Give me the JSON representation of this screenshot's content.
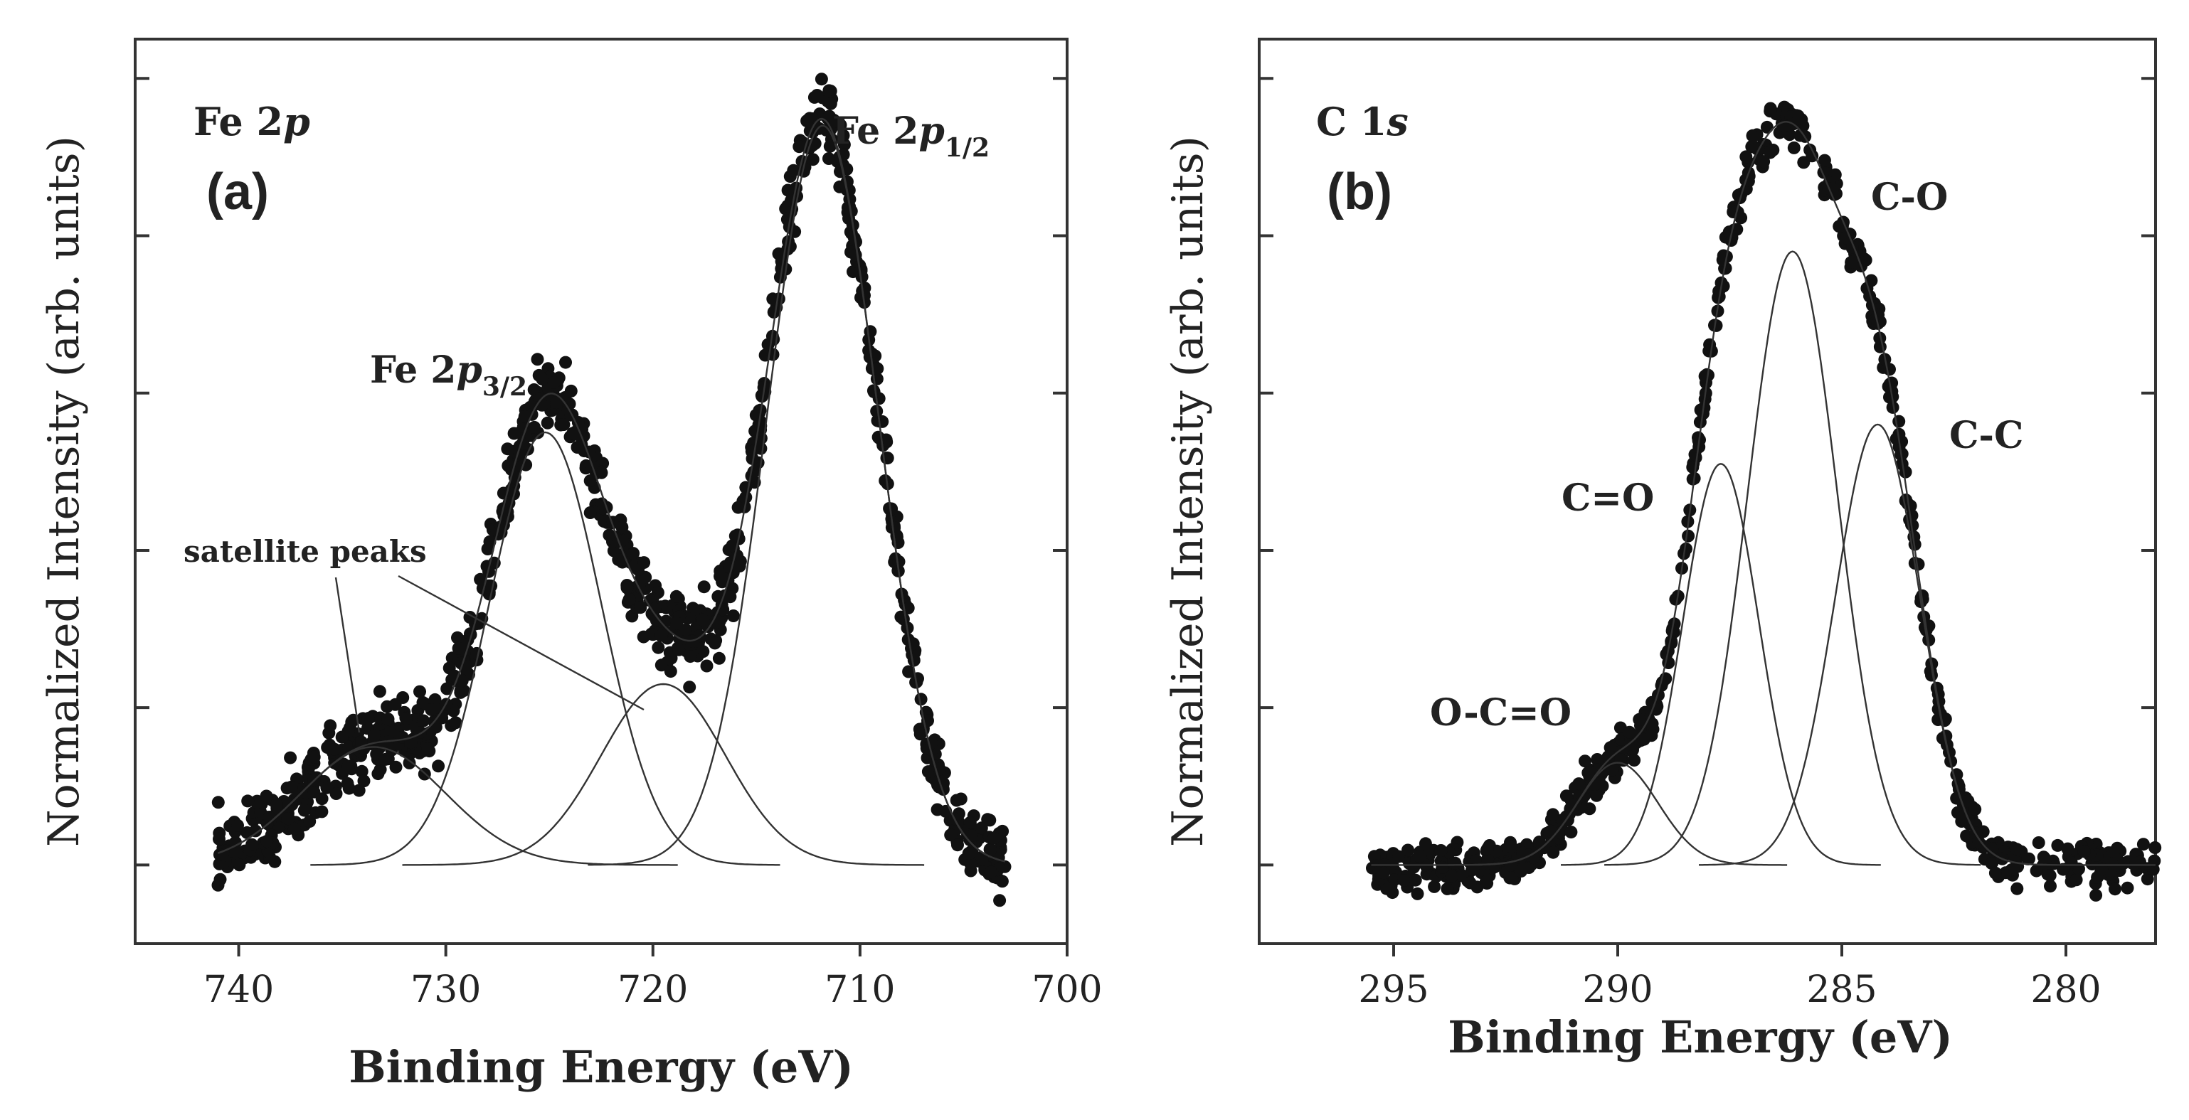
{
  "chart_data": [
    {
      "type": "scatter",
      "panel_label": "(a)",
      "title": "Fe 2",
      "title_italic": "p",
      "xlabel": "Binding Energy (eV)",
      "ylabel": "Normalized Intensity (arb. units)",
      "xlim": [
        745,
        700
      ],
      "ylim": [
        -0.1,
        1.05
      ],
      "x_ticks": [
        740,
        730,
        720,
        710,
        700
      ],
      "x_tick_labels": [
        "740",
        "730",
        "720",
        "710",
        "700"
      ],
      "y_ticks": [
        0,
        0.2,
        0.4,
        0.6,
        0.8,
        1.0
      ],
      "x_range_points": [
        741,
        703
      ],
      "baseline": 0.0,
      "peaks": [
        {
          "name": "Fe 2p1/2",
          "center": 711.8,
          "height": 0.94,
          "width": 2.7
        },
        {
          "name": "Fe 2p3/2",
          "center": 725.2,
          "height": 0.55,
          "width": 2.7
        },
        {
          "name": "satellite 1",
          "center": 719.5,
          "height": 0.23,
          "width": 3.0
        },
        {
          "name": "satellite 2",
          "center": 733.5,
          "height": 0.15,
          "width": 3.5
        }
      ],
      "annotations": [
        {
          "text": "Fe 2",
          "italic": "p",
          "sub": "1/2"
        },
        {
          "text": "Fe 2",
          "italic": "p",
          "sub": "3/2"
        },
        {
          "text": "satellite peaks"
        }
      ]
    },
    {
      "type": "scatter",
      "panel_label": "(b)",
      "title": "C 1",
      "title_italic": "s",
      "xlabel": "Binding Energy (eV)",
      "ylabel": "Normalized Intensity (arb. units)",
      "xlim": [
        298,
        278
      ],
      "ylim": [
        -0.1,
        1.05
      ],
      "x_ticks": [
        295,
        290,
        285,
        280
      ],
      "x_tick_labels": [
        "295",
        "290",
        "285",
        "280"
      ],
      "y_ticks": [
        0,
        0.2,
        0.4,
        0.6,
        0.8,
        1.0
      ],
      "x_range_points": [
        295.5,
        278
      ],
      "baseline": 0.0,
      "peaks": [
        {
          "name": "C-O",
          "center": 286.1,
          "height": 0.78,
          "width": 1.0
        },
        {
          "name": "C-C",
          "center": 284.2,
          "height": 0.56,
          "width": 0.95
        },
        {
          "name": "C=O",
          "center": 287.7,
          "height": 0.51,
          "width": 0.85
        },
        {
          "name": "O-C=O",
          "center": 290.0,
          "height": 0.13,
          "width": 0.9
        }
      ],
      "annotations": [
        {
          "text": "C-O"
        },
        {
          "text": "C-C"
        },
        {
          "text": "C=O"
        },
        {
          "text": "O-C=O"
        }
      ]
    }
  ]
}
